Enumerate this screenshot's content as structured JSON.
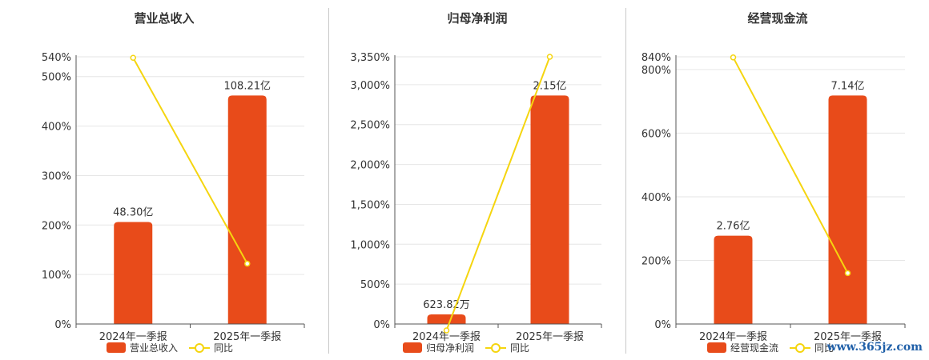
{
  "colors": {
    "bar": "#E84B1A",
    "line": "#F5D50F",
    "grid": "#e6e6e6",
    "axis": "#555555"
  },
  "watermark": "www.365jz.com",
  "chart_data": [
    {
      "type": "bar",
      "title": "营业总收入",
      "categories": [
        "2024年一季报",
        "2025年一季报"
      ],
      "bar_series": {
        "name": "营业总收入",
        "values": [
          48.3,
          108.21
        ],
        "labels": [
          "48.30亿",
          "108.21亿"
        ]
      },
      "line_series": {
        "name": "同比",
        "values": [
          538,
          122
        ]
      },
      "ylim": [
        0,
        540
      ],
      "yticks": [
        0,
        100,
        200,
        300,
        400,
        500,
        540
      ],
      "ytick_labels": [
        "0%",
        "100%",
        "200%",
        "300%",
        "400%",
        "500%",
        "540%"
      ],
      "legend": [
        "营业总收入",
        "同比"
      ],
      "legend_position": "bottom",
      "grid": true
    },
    {
      "type": "bar",
      "title": "归母净利润",
      "categories": [
        "2024年一季报",
        "2025年一季报"
      ],
      "bar_series": {
        "name": "归母净利润",
        "values": [
          0.0624,
          2.15
        ],
        "labels": [
          "623.82万",
          "2.15亿"
        ]
      },
      "line_series": {
        "name": "同比",
        "values": [
          -80,
          3350
        ]
      },
      "ylim": [
        0,
        3350
      ],
      "yticks": [
        0,
        500,
        1000,
        1500,
        2000,
        2500,
        3000,
        3350
      ],
      "ytick_labels": [
        "0%",
        "500%",
        "1,000%",
        "1,500%",
        "2,000%",
        "2,500%",
        "3,000%",
        "3,350%"
      ],
      "legend": [
        "归母净利润",
        "同比"
      ],
      "legend_position": "bottom",
      "grid": true
    },
    {
      "type": "bar",
      "title": "经营现金流",
      "categories": [
        "2024年一季报",
        "2025年一季报"
      ],
      "bar_series": {
        "name": "经营现金流",
        "values": [
          2.76,
          7.14
        ],
        "labels": [
          "2.76亿",
          "7.14亿"
        ]
      },
      "line_series": {
        "name": "同比",
        "values": [
          838,
          160
        ]
      },
      "ylim": [
        0,
        840
      ],
      "yticks": [
        0,
        200,
        400,
        600,
        800,
        840
      ],
      "ytick_labels": [
        "0%",
        "200%",
        "400%",
        "600%",
        "800%",
        "840%"
      ],
      "legend": [
        "经营现金流",
        "同比"
      ],
      "legend_position": "bottom",
      "grid": true
    }
  ]
}
